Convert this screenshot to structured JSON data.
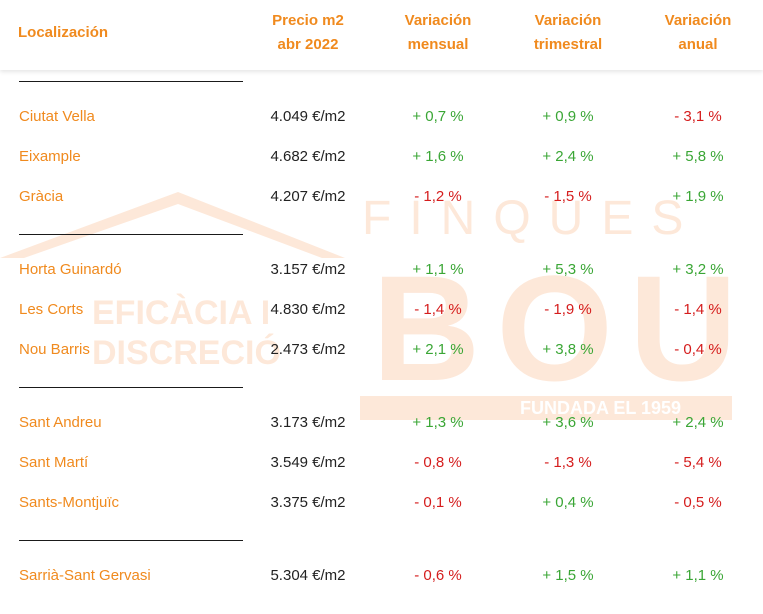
{
  "colors": {
    "accent": "#f08a1e",
    "positive": "#3aa635",
    "negative": "#d51d1d",
    "watermark": "#fde8d9"
  },
  "watermark": {
    "brand_line1": "FINQUES",
    "brand_line2": "BOU",
    "tagline_line1": "EFICÀCIA I",
    "tagline_line2": "DISCRECIÓ",
    "founded": "FUNDADA EL 1959"
  },
  "headers": {
    "localizacion": "Localización",
    "precio": "Precio m2\nabr 2022",
    "mensual": "Variación\nmensual",
    "trimestral": "Variación\ntrimestral",
    "anual": "Variación\nanual"
  },
  "rows": [
    {
      "name": "Ciutat Vella",
      "price": "4.049 €/m2",
      "mensual": "+ 0,7 %",
      "trimestral": "+ 0,9 %",
      "anual": "- 3,1 %"
    },
    {
      "name": "Eixample",
      "price": "4.682 €/m2",
      "mensual": "+ 1,6 %",
      "trimestral": "+ 2,4 %",
      "anual": "+ 5,8 %"
    },
    {
      "name": "Gràcia",
      "price": "4.207 €/m2",
      "mensual": "- 1,2 %",
      "trimestral": "- 1,5 %",
      "anual": "+ 1,9 %"
    },
    {
      "name": "Horta Guinardó",
      "price": "3.157 €/m2",
      "mensual": "+ 1,1 %",
      "trimestral": "+ 5,3 %",
      "anual": "+ 3,2 %"
    },
    {
      "name": "Les Corts",
      "price": "4.830 €/m2",
      "mensual": "- 1,4 %",
      "trimestral": "- 1,9 %",
      "anual": "- 1,4 %"
    },
    {
      "name": "Nou Barris",
      "price": "2.473 €/m2",
      "mensual": "+ 2,1 %",
      "trimestral": "+ 3,8 %",
      "anual": "- 0,4 %"
    },
    {
      "name": "Sant Andreu",
      "price": "3.173 €/m2",
      "mensual": "+ 1,3 %",
      "trimestral": "+ 3,6 %",
      "anual": "+ 2,4 %"
    },
    {
      "name": "Sant Martí",
      "price": "3.549 €/m2",
      "mensual": "- 0,8 %",
      "trimestral": "- 1,3 %",
      "anual": "- 5,4 %"
    },
    {
      "name": "Sants-Montjuïc",
      "price": "3.375 €/m2",
      "mensual": "- 0,1 %",
      "trimestral": "+ 0,4 %",
      "anual": "- 0,5 %"
    },
    {
      "name": "Sarrià-Sant Gervasi",
      "price": "5.304 €/m2",
      "mensual": "- 0,6 %",
      "trimestral": "+ 1,5 %",
      "anual": "+ 1,1 %"
    }
  ]
}
